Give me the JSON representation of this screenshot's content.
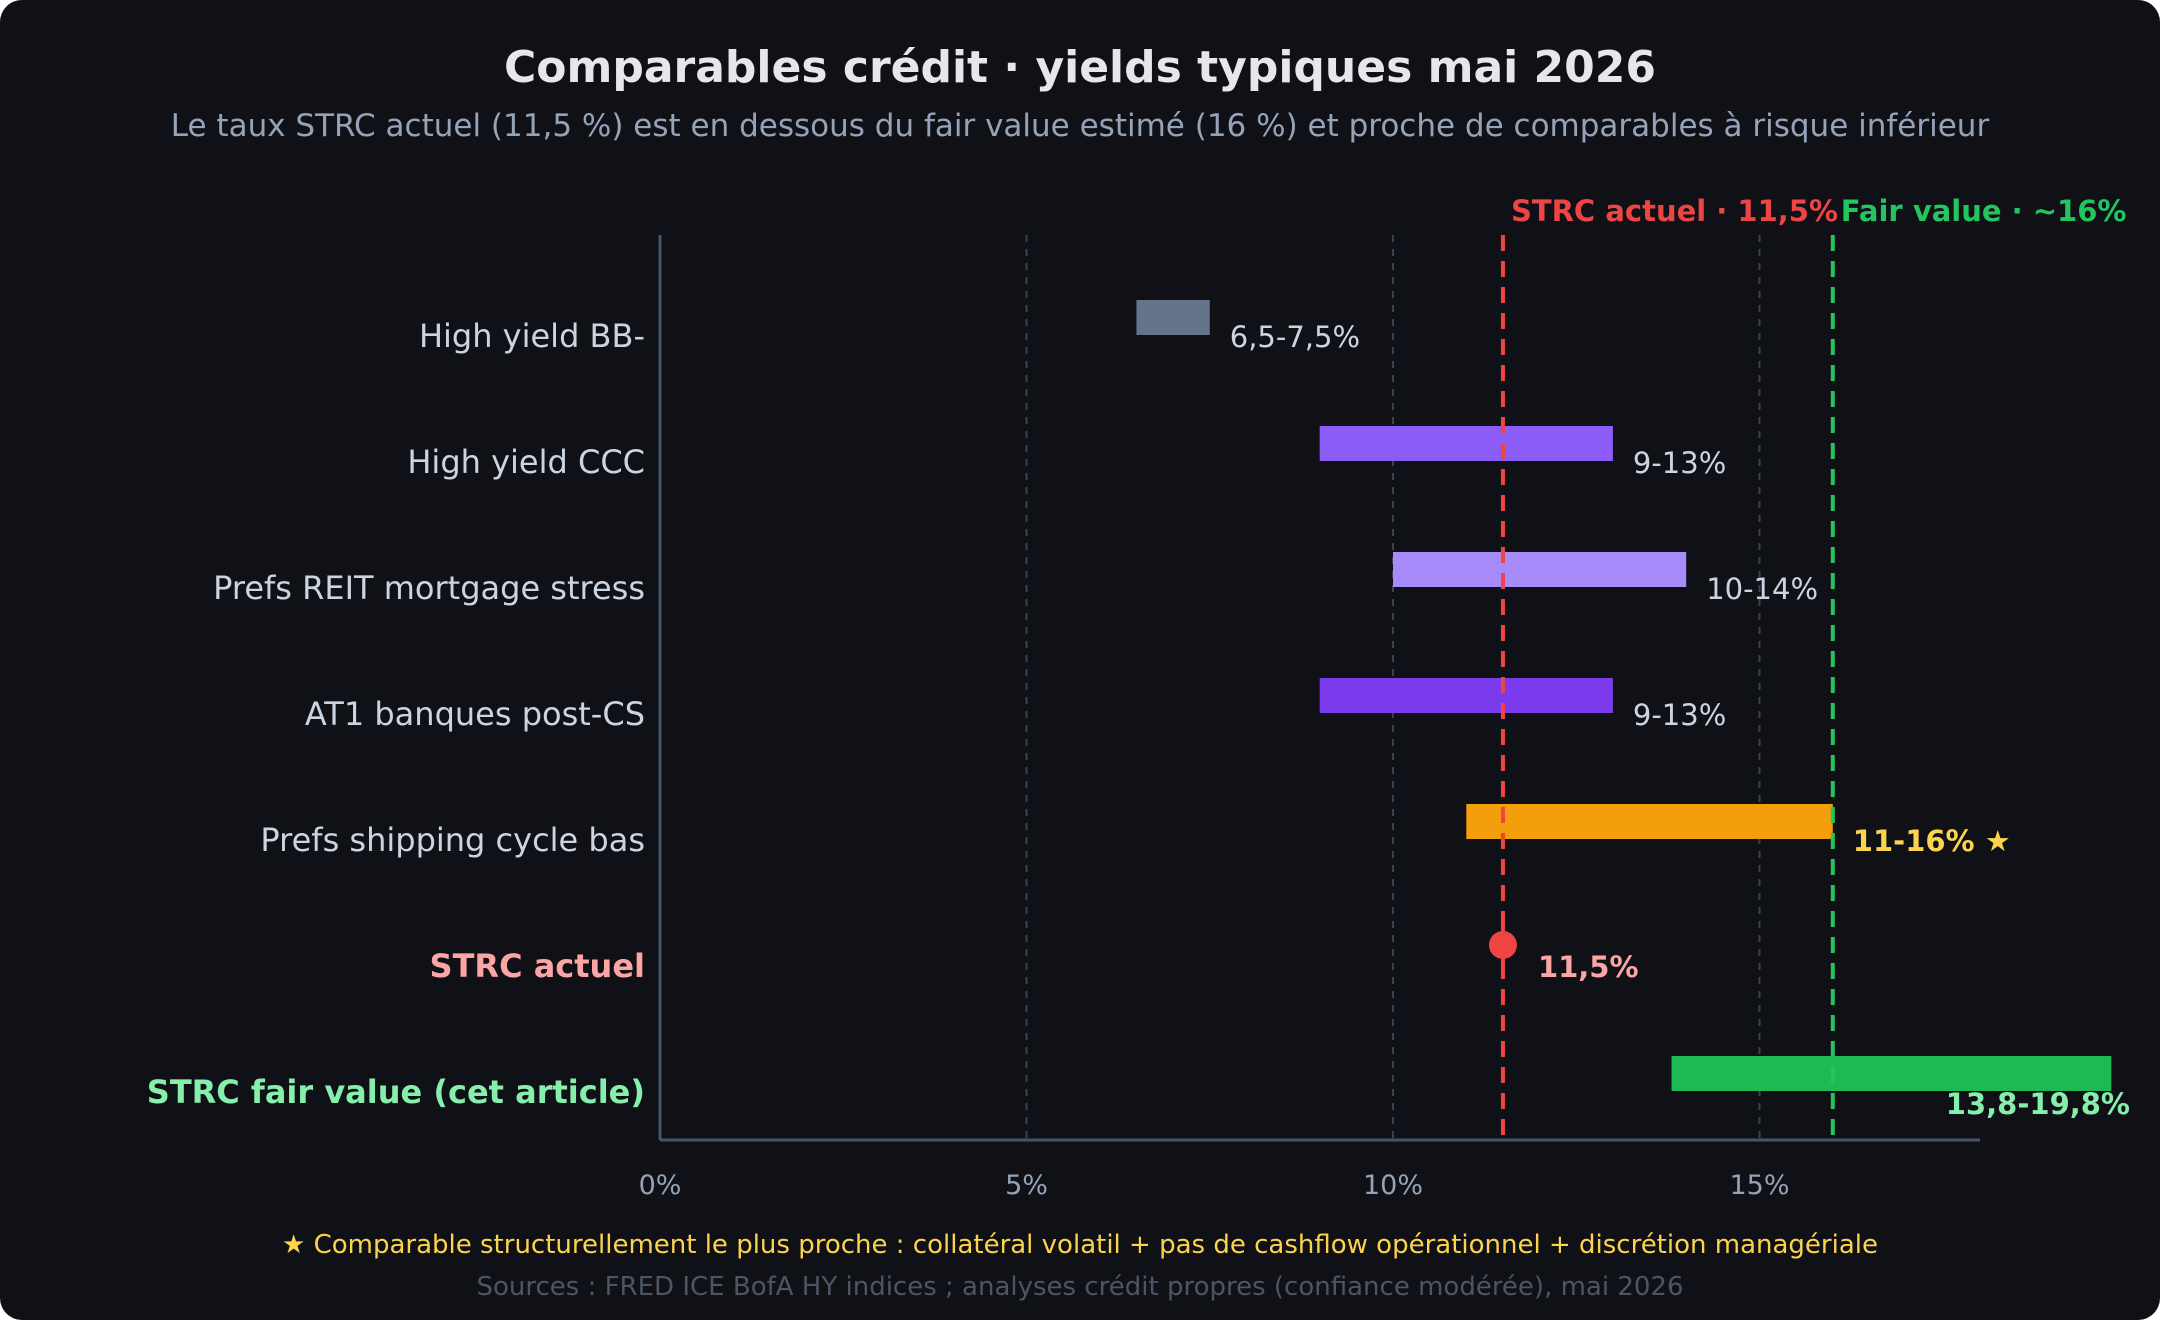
{
  "chart_data": {
    "type": "bar",
    "subtype": "horizontal-range",
    "title": "Comparables crédit · yields typiques mai 2026",
    "subtitle": "Le taux STRC actuel (11,5 %) est en dessous du fair value estimé (16 %) et proche de comparables à risque inférieur",
    "xlim": [
      0,
      18
    ],
    "x_ticks": [
      {
        "value": 0,
        "label": "0%"
      },
      {
        "value": 5,
        "label": "5%"
      },
      {
        "value": 10,
        "label": "10%"
      },
      {
        "value": 15,
        "label": "15%"
      }
    ],
    "grid": "vertical-dashed",
    "categories": [
      {
        "label": "High yield BB-",
        "low": 6.5,
        "high": 7.5,
        "value_label": "6,5-7,5%",
        "color": "#64748b",
        "label_color": "#cbd5e1",
        "value_color": "#cbd5e1",
        "bold": false,
        "kind": "range"
      },
      {
        "label": "High yield CCC",
        "low": 9,
        "high": 13,
        "value_label": "9-13%",
        "color": "#8b5cf6",
        "label_color": "#cbd5e1",
        "value_color": "#cbd5e1",
        "bold": false,
        "kind": "range"
      },
      {
        "label": "Prefs REIT mortgage stress",
        "low": 10,
        "high": 14,
        "value_label": "10-14%",
        "color": "#a78bfa",
        "label_color": "#cbd5e1",
        "value_color": "#cbd5e1",
        "bold": false,
        "kind": "range"
      },
      {
        "label": "AT1 banques post-CS",
        "low": 9,
        "high": 13,
        "value_label": "9-13%",
        "color": "#7c3aed",
        "label_color": "#cbd5e1",
        "value_color": "#cbd5e1",
        "bold": false,
        "kind": "range"
      },
      {
        "label": "Prefs shipping cycle bas",
        "low": 11,
        "high": 16,
        "value_label": "11-16% ★",
        "color": "#f59e0b",
        "label_color": "#cbd5e1",
        "value_color": "#fcd34d",
        "bold": false,
        "value_bold": true,
        "kind": "range"
      },
      {
        "label": "STRC actuel",
        "value": 11.5,
        "value_label": "11,5%",
        "color": "#ef4444",
        "label_color": "#fca5a5",
        "value_color": "#fca5a5",
        "bold": true,
        "value_bold": true,
        "kind": "point"
      },
      {
        "label": "STRC fair value (cet article)",
        "low": 13.8,
        "high": 19.8,
        "value_label": "13,8-19,8%",
        "color": "#1db954",
        "label_color": "#86efac",
        "value_color": "#86efac",
        "bold": true,
        "value_bold": true,
        "kind": "range"
      }
    ],
    "reference_lines": [
      {
        "value": 11.5,
        "label": "STRC actuel · 11,5%",
        "color": "#ef4444"
      },
      {
        "value": 16,
        "label": "Fair value · ~16%",
        "color": "#22c55e"
      }
    ],
    "footnote": "★ Comparable structurellement le plus proche : collatéral volatil + pas de cashflow opérationnel + discrétion managériale",
    "source": "Sources : FRED ICE BofA HY indices ; analyses crédit propres (confiance modérée), mai 2026"
  },
  "colors": {
    "background": "#101117",
    "title": "#e5e7eb",
    "subtitle": "#94a3b8",
    "axis": "#475569",
    "grid": "#3a4150",
    "tick_label": "#94a3b8",
    "footnote": "#fcd34d",
    "source": "#4b5563"
  }
}
